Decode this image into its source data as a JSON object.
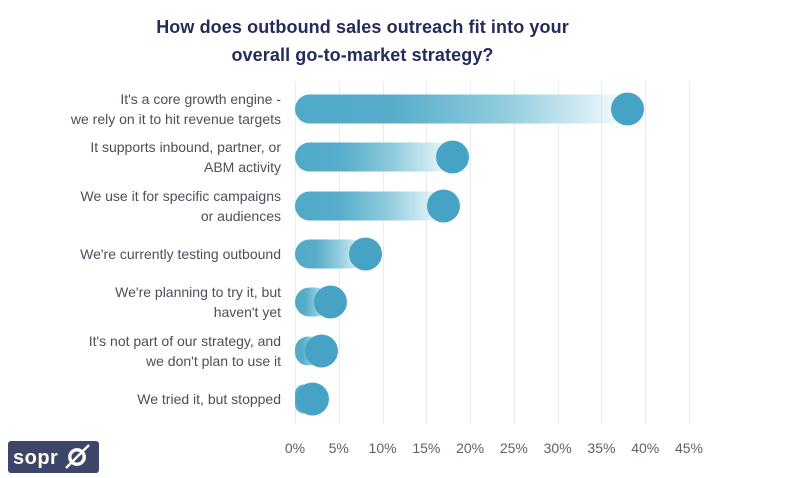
{
  "header": {
    "title": "How does outbound sales outreach fit into your\noverall go-to-market strategy?"
  },
  "chart_data": {
    "type": "bar",
    "orientation": "horizontal",
    "title": "How does outbound sales outreach fit into your overall go-to-market strategy?",
    "unit": "%",
    "categories": [
      "It's a core growth engine -\nwe rely on it to hit revenue targets",
      "It supports inbound, partner, or\nABM activity",
      "We use it for specific campaigns\nor audiences",
      "We're currently testing outbound",
      "We're planning to try it, but\nhaven't yet",
      "It's not part of our strategy, and\nwe don't plan to use it",
      "We tried it, but stopped"
    ],
    "values": [
      38,
      18,
      17,
      8,
      4,
      3,
      2
    ],
    "xlim": [
      0,
      45
    ],
    "x_ticks": [
      "0%",
      "5%",
      "10%",
      "15%",
      "20%",
      "25%",
      "30%",
      "35%",
      "40%",
      "45%"
    ],
    "x_tick_values": [
      0,
      5,
      10,
      15,
      20,
      25,
      30,
      35,
      40,
      45
    ],
    "grid": "vertical-only",
    "legend": "none",
    "bar_color": "#4fa9c8",
    "dot_color": "#47a3c5",
    "bar_fade_color": "#ecf7fa"
  },
  "branding": {
    "logo_text": "sopro",
    "logo_bg": "#3e4568",
    "logo_fg": "#ffffff"
  },
  "colors": {
    "title": "#252c5b",
    "category_label": "#4b4f5c",
    "tick_label": "#5b606e",
    "gridline": "#e9eaf2",
    "background": "#ffffff"
  }
}
